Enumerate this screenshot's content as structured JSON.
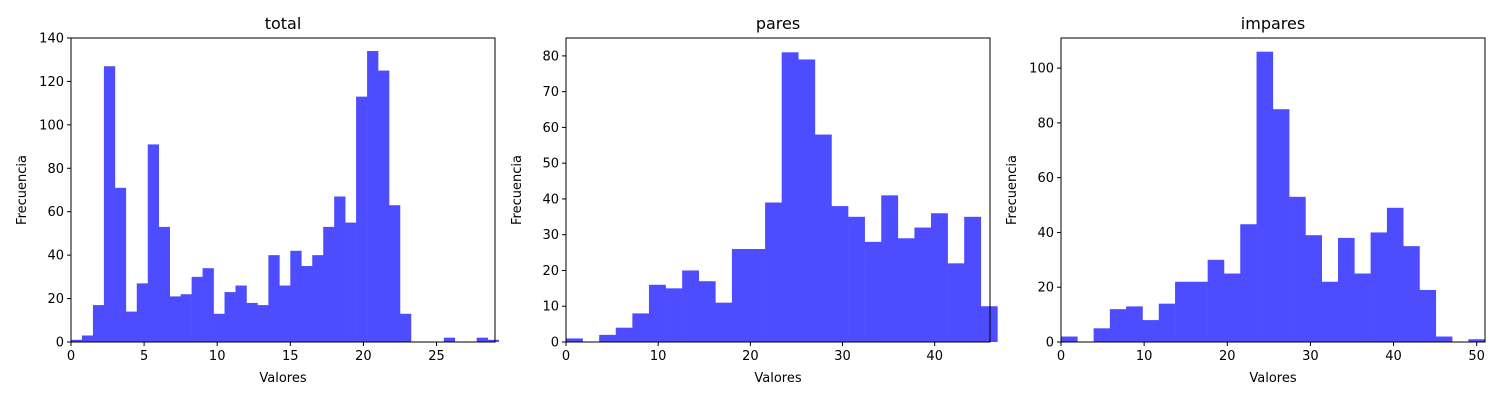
{
  "chart_data": [
    {
      "type": "bar",
      "title": "total",
      "xlabel": "Valores",
      "ylabel": "Frecuencia",
      "xlim": [
        0,
        29
      ],
      "ylim": [
        0,
        140
      ],
      "xticks": [
        0,
        5,
        10,
        15,
        20,
        25
      ],
      "yticks": [
        0,
        20,
        40,
        60,
        80,
        100,
        120,
        140
      ],
      "bar_color": "#4d4dff",
      "bin_start": 0,
      "bin_width": 0.75,
      "values": [
        1,
        3,
        17,
        127,
        71,
        14,
        27,
        91,
        53,
        21,
        22,
        30,
        34,
        13,
        23,
        26,
        18,
        17,
        40,
        26,
        42,
        35,
        40,
        53,
        67,
        55,
        113,
        134,
        125,
        63,
        13,
        0,
        0,
        0,
        2,
        0,
        0,
        2,
        1
      ],
      "grid": false
    },
    {
      "type": "bar",
      "title": "pares",
      "xlabel": "Valores",
      "ylabel": "Frecuencia",
      "xlim": [
        0,
        46
      ],
      "ylim": [
        0,
        85
      ],
      "xticks": [
        0,
        10,
        20,
        30,
        40
      ],
      "yticks": [
        0,
        10,
        20,
        30,
        40,
        50,
        60,
        70,
        80
      ],
      "bar_color": "#4d4dff",
      "bin_start": 0,
      "bin_width": 1.8,
      "values": [
        1,
        0,
        2,
        4,
        8,
        16,
        15,
        20,
        17,
        11,
        26,
        26,
        39,
        81,
        79,
        58,
        38,
        35,
        28,
        41,
        29,
        32,
        36,
        22,
        35,
        10
      ],
      "grid": false
    },
    {
      "type": "bar",
      "title": "impares",
      "xlabel": "Valores",
      "ylabel": "Frecuencia",
      "xlim": [
        0,
        51
      ],
      "ylim": [
        0,
        111
      ],
      "xticks": [
        0,
        10,
        20,
        30,
        40,
        50
      ],
      "yticks": [
        0,
        20,
        40,
        60,
        80,
        100
      ],
      "bar_color": "#4d4dff",
      "bin_start": 0,
      "bin_width": 1.96,
      "values": [
        2,
        0,
        5,
        12,
        13,
        8,
        14,
        22,
        22,
        30,
        25,
        43,
        106,
        85,
        53,
        39,
        22,
        38,
        25,
        40,
        49,
        35,
        19,
        2,
        0,
        1
      ],
      "grid": false
    }
  ]
}
